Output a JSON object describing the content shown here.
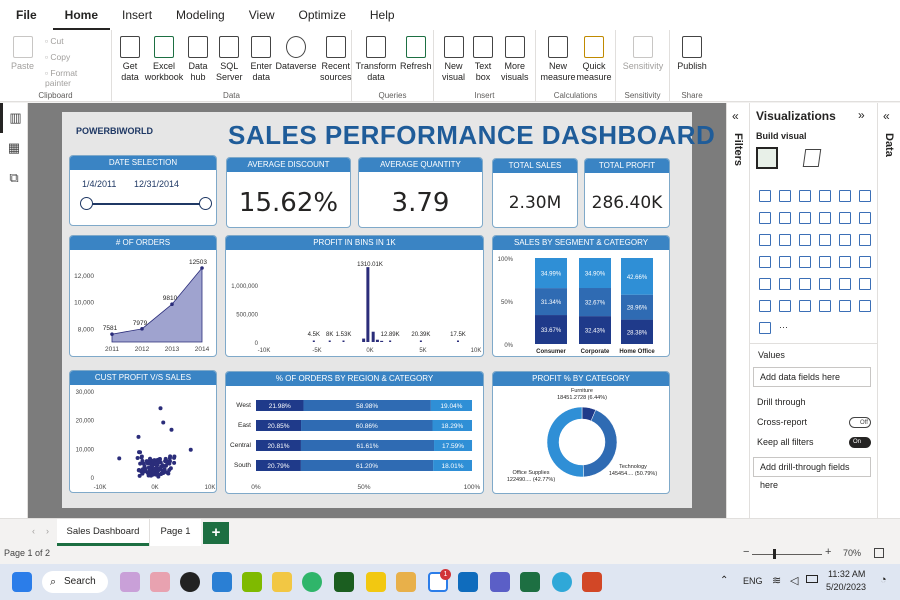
{
  "menu": {
    "file": "File",
    "items": [
      "Home",
      "Insert",
      "Modeling",
      "View",
      "Optimize",
      "Help"
    ]
  },
  "ribbon": {
    "clipboard": {
      "paste": "Paste",
      "cut": "Cut",
      "copy": "Copy",
      "format_painter": "Format painter",
      "label": "Clipboard"
    },
    "data": {
      "get_data": "Get data",
      "excel": "Excel workbook",
      "data_hub": "Data hub",
      "sql": "SQL Server",
      "enter": "Enter data",
      "dataverse": "Dataverse",
      "recent": "Recent sources",
      "label": "Data"
    },
    "queries": {
      "transform": "Transform data",
      "refresh": "Refresh",
      "label": "Queries"
    },
    "insert": {
      "new_visual": "New visual",
      "text_box": "Text box",
      "more_visuals": "More visuals",
      "label": "Insert"
    },
    "calculations": {
      "new_measure": "New measure",
      "quick_measure": "Quick measure",
      "label": "Calculations"
    },
    "sensitivity": {
      "sensitivity": "Sensitivity",
      "label": "Sensitivity"
    },
    "share": {
      "publish": "Publish",
      "label": "Share"
    }
  },
  "report": {
    "brand": "POWERBIWORLD",
    "title": "SALES PERFORMANCE DASHBOARD",
    "date_selection": {
      "header": "DATE SELECTION",
      "start": "1/4/2011",
      "end": "12/31/2014"
    },
    "kpis": [
      {
        "header": "AVERAGE DISCOUNT",
        "value": "15.62%"
      },
      {
        "header": "AVERAGE QUANTITY",
        "value": "3.79"
      },
      {
        "header": "TOTAL SALES",
        "value": "2.30M"
      },
      {
        "header": "TOTAL PROFIT",
        "value": "286.40K"
      }
    ],
    "headers": {
      "orders": "# OF ORDERS",
      "bins": "PROFIT IN BINS IN 1K",
      "segment": "SALES BY SEGMENT & CATEGORY",
      "scatter": "CUST PROFIT v/s SALES",
      "region": "% OF ORDERS BY REGION & CATEGORY",
      "donut": "PROFIT % BY CATEGORY"
    }
  },
  "chart_data": [
    {
      "type": "area",
      "title": "# OF ORDERS",
      "categories": [
        "2011",
        "2012",
        "2013",
        "2014"
      ],
      "values": [
        7581,
        7979,
        9810,
        12503
      ],
      "yticks": [
        "12,000",
        "10,000",
        "8,000"
      ],
      "ylim": [
        7000,
        12800
      ]
    },
    {
      "type": "bar",
      "title": "PROFIT IN BINS IN 1K",
      "x_ticks": [
        "-10K",
        "-5K",
        "0K",
        "5K",
        "10K"
      ],
      "y_ticks": [
        "1,000,000",
        "500,000",
        "0"
      ],
      "labels": [
        {
          "x": -5.3,
          "text": "4.5K"
        },
        {
          "x": -3.8,
          "text": "8K"
        },
        {
          "x": -2.5,
          "text": "1.53K"
        },
        {
          "x": 0,
          "text": "1310.01K"
        },
        {
          "x": 1.9,
          "text": "12.89K"
        },
        {
          "x": 4.8,
          "text": "20.39K"
        },
        {
          "x": 8.3,
          "text": "17.5K"
        }
      ],
      "values": [
        {
          "x": -0.2,
          "value": 1310010
        },
        {
          "x": -0.6,
          "value": 60000
        },
        {
          "x": 0.3,
          "value": 180000
        },
        {
          "x": 0.7,
          "value": 40000
        },
        {
          "x": 1.1,
          "value": 20000
        }
      ],
      "ylim": [
        0,
        1400000
      ],
      "xlim": [
        -10,
        10
      ]
    },
    {
      "type": "bar",
      "stacked": true,
      "title": "SALES BY SEGMENT & CATEGORY",
      "categories": [
        "Consumer",
        "Corporate",
        "Home Office"
      ],
      "yticks": [
        "100%",
        "50%",
        "0%"
      ],
      "series": [
        {
          "values": [
            33.67,
            32.43,
            28.38
          ]
        },
        {
          "values": [
            31.34,
            32.67,
            28.96
          ]
        },
        {
          "values": [
            34.99,
            34.9,
            42.66
          ]
        }
      ],
      "labels": [
        [
          "33.67%",
          "31.34%",
          "34.99%"
        ],
        [
          "32.43%",
          "32.67%",
          "34.90%"
        ],
        [
          "28.38%",
          "28.96%",
          "42.66%"
        ]
      ]
    },
    {
      "type": "scatter",
      "title": "CUST PROFIT v/s SALES",
      "x_ticks": [
        "-10K",
        "0K",
        "10K"
      ],
      "y_ticks": [
        "30,000",
        "20,000",
        "10,000",
        "0"
      ],
      "xlim": [
        -10000,
        10000
      ],
      "ylim": [
        0,
        30000
      ]
    },
    {
      "type": "bar",
      "stacked": true,
      "horizontal": true,
      "title": "% OF ORDERS BY REGION & CATEGORY",
      "categories": [
        "West",
        "East",
        "Central",
        "South"
      ],
      "xticks": [
        "0%",
        "50%",
        "100%"
      ],
      "series": [
        {
          "values": [
            21.98,
            20.85,
            20.81,
            20.79
          ]
        },
        {
          "values": [
            58.98,
            60.86,
            61.61,
            61.2
          ]
        },
        {
          "values": [
            19.04,
            18.29,
            17.59,
            18.01
          ]
        }
      ]
    },
    {
      "type": "pie",
      "donut": true,
      "title": "PROFIT % BY CATEGORY",
      "slices": [
        {
          "label": "Furniture",
          "value_text": "18451.2728 (6.44%)",
          "value": 6.44
        },
        {
          "label": "Office Supplies",
          "value_text": "122490.... (42.77%)",
          "value": 42.77
        },
        {
          "label": "Technology",
          "value_text": "145454.... (50.79%)",
          "value": 50.79
        }
      ]
    }
  ],
  "filters_label": "Filters",
  "viz_pane": {
    "title": "Visualizations",
    "build": "Build visual",
    "values": "Values",
    "add_fields": "Add data fields here",
    "drill": "Drill through",
    "cross_report": "Cross-report",
    "cross_state": "Off",
    "keep_filters": "Keep all filters",
    "keep_state": "On",
    "add_drill": "Add drill-through fields here"
  },
  "data_label": "Data",
  "tabs": {
    "sales": "Sales Dashboard",
    "page1": "Page 1",
    "add": "+"
  },
  "status": {
    "page": "Page 1 of 2",
    "zoom": "70%"
  },
  "taskbar": {
    "search": "Search",
    "lang": "ENG",
    "time": "11:32 AM",
    "date": "5/20/2023"
  },
  "colors": {
    "accent": "#3a84c4",
    "dark_bar": "#1f3a8a",
    "mid_bar": "#2f6bb3",
    "light_bar": "#2f8fd6",
    "area": "#9fa3cf",
    "scatter": "#2b2d7a"
  }
}
